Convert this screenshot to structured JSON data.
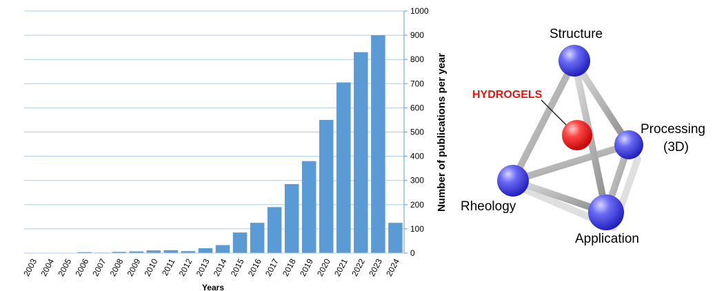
{
  "chart_data": {
    "type": "bar",
    "categories": [
      "2003",
      "2004",
      "2005",
      "2006",
      "2007",
      "2008",
      "2009",
      "2010",
      "2011",
      "2012",
      "2013",
      "2014",
      "2015",
      "2016",
      "2017",
      "2018",
      "2019",
      "2020",
      "2021",
      "2022",
      "2023",
      "2024"
    ],
    "values": [
      1,
      1,
      1,
      4,
      2,
      5,
      7,
      11,
      12,
      8,
      20,
      33,
      85,
      125,
      190,
      285,
      380,
      550,
      705,
      830,
      900,
      125
    ],
    "xlabel": "Years",
    "ylabel": "Number of publications per year",
    "ylim": [
      0,
      1000
    ],
    "yticks": [
      0,
      100,
      200,
      300,
      400,
      500,
      600,
      700,
      800,
      900,
      1000
    ],
    "y_axis_side": "right",
    "grid": true,
    "bar_color": "#5b9bd5"
  },
  "diagram": {
    "center_label": "HYDROGELS",
    "center_label_color": "#ee1111",
    "nodes": {
      "structure": "Structure",
      "processing_line1": "Processing",
      "processing_line2": "(3D)",
      "rheology": "Rheology",
      "application": "Application"
    },
    "node_color": "#3a3aee",
    "center_node_color": "#ee2222",
    "rod_color": "#a9a9a9"
  }
}
